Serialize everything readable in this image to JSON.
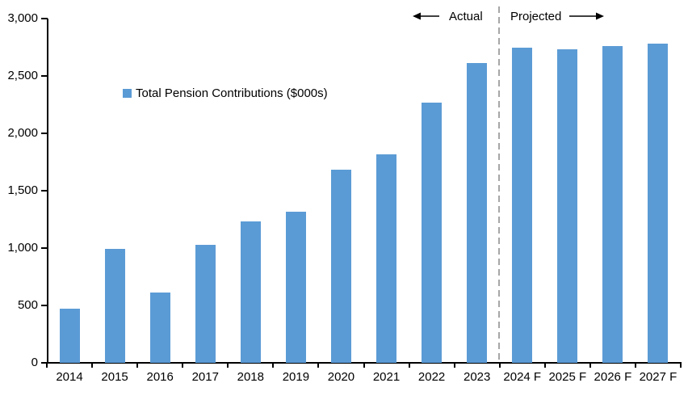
{
  "chart_data": {
    "type": "bar",
    "title": "",
    "legend": "Total Pension Contributions ($000s)",
    "legend_position": "inside-upper-left",
    "categories": [
      "2014",
      "2015",
      "2016",
      "2017",
      "2018",
      "2019",
      "2020",
      "2021",
      "2022",
      "2023",
      "2024 F",
      "2025 F",
      "2026 F",
      "2027 F"
    ],
    "values": [
      470,
      990,
      610,
      1025,
      1230,
      1320,
      1680,
      1815,
      2270,
      2610,
      2750,
      2735,
      2760,
      2785
    ],
    "xlabel": "",
    "ylabel": "",
    "ylim": [
      0,
      3000
    ],
    "ytick_interval": 500,
    "ytick_values": [
      0,
      500,
      1000,
      1500,
      2000,
      2500,
      3000
    ],
    "ytick_labels": [
      "0",
      "500",
      "1,000",
      "1,500",
      "2,000",
      "2,500",
      "3,000"
    ],
    "grid": false,
    "bar_color": "#5B9BD5",
    "axis_color": "#000000",
    "divider": {
      "after_category": "2023",
      "style": "dashed",
      "color": "#A6A6A6"
    },
    "annotations": {
      "actual_label": "Actual",
      "projected_label": "Projected",
      "arrow_color": "#000000"
    }
  }
}
